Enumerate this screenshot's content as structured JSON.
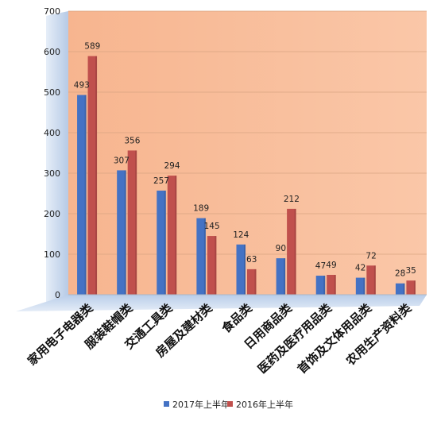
{
  "chart_data": {
    "type": "bar",
    "categories": [
      "家用电子电器类",
      "服装鞋帽类",
      "交通工具类",
      "房屋及建材类",
      "食品类",
      "日用商品类",
      "医药及医疗用品类",
      "首饰及文体用品类",
      "农用生产资料类"
    ],
    "series": [
      {
        "name": "2017年上半年",
        "values": [
          493,
          307,
          257,
          189,
          124,
          90,
          47,
          42,
          28
        ],
        "labels": [
          "493",
          "307",
          "257",
          "189",
          "124",
          "90",
          "47",
          "42",
          "28"
        ],
        "color": "#4472C4"
      },
      {
        "name": "2016年上半年",
        "values": [
          589,
          356,
          294,
          145,
          63,
          212,
          49,
          72,
          35
        ],
        "labels": [
          "589",
          "356",
          "294",
          "145",
          "63",
          "212",
          "49",
          "72",
          "35"
        ],
        "color": "#C0504D"
      }
    ],
    "y_ticks": [
      "0",
      "100",
      "200",
      "300",
      "400",
      "500",
      "600",
      "700"
    ],
    "ylim": [
      0,
      700
    ],
    "grid": true,
    "legend_position": "bottom",
    "plot_background": "#F9BE9A",
    "wall_background": "#C9D8EE"
  }
}
